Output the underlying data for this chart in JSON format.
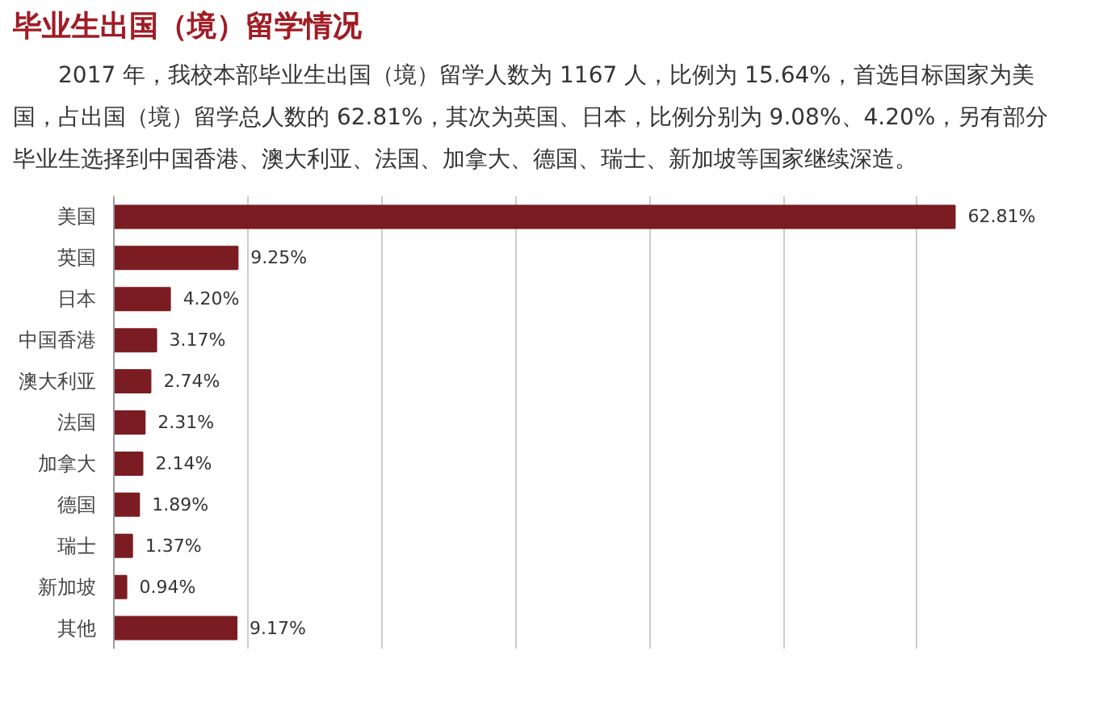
{
  "chart_data": {
    "type": "bar",
    "orientation": "horizontal",
    "title": "毕业生出国（境）留学情况",
    "subtitle": "2017 年，我校本部毕业生出国（境）留学人数为 1167 人，比例为 15.64%，首选目标国家为美国，占出国（境）留学总人数的 62.81%，其次为英国、日本，比例分别为 9.08%、4.20%，另有部分毕业生选择到中国香港、澳大利亚、法国、加拿大、德国、瑞士、新加坡等国家继续深造。",
    "categories": [
      "美国",
      "英国",
      "日本",
      "中国香港",
      "澳大利亚",
      "法国",
      "加拿大",
      "德国",
      "瑞士",
      "新加坡",
      "其他"
    ],
    "values": [
      62.81,
      9.25,
      4.2,
      3.17,
      2.74,
      2.31,
      2.14,
      1.89,
      1.37,
      0.94,
      9.17
    ],
    "value_labels": [
      "62.81%",
      "9.25%",
      "4.20%",
      "3.17%",
      "2.74%",
      "2.31%",
      "2.14%",
      "1.89%",
      "1.37%",
      "0.94%",
      "9.17%"
    ],
    "color": "#7b1c22",
    "tick_labels": "y",
    "grid": "x"
  }
}
